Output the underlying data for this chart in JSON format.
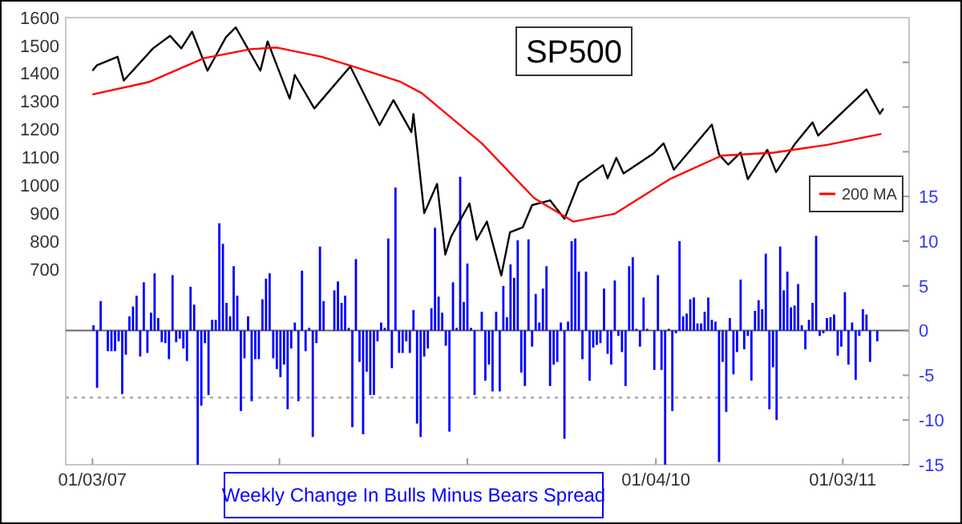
{
  "chart_data": {
    "type": "line",
    "title": "SP500",
    "xlim": [
      "2006-11-12",
      "2011-05-12"
    ],
    "xticks": [
      {
        "value": "2007-01-03",
        "label": "01/03/07"
      },
      {
        "value": "2008-01-02",
        "label": null
      },
      {
        "value": "2009-01-02",
        "label": null
      },
      {
        "value": "2010-01-04",
        "label": "01/04/10"
      },
      {
        "value": "2011-01-03",
        "label": "01/03/11"
      }
    ],
    "ylim": [
      0,
      1600
    ],
    "yticks": [
      700,
      800,
      900,
      1000,
      1100,
      1200,
      1300,
      1400,
      1500,
      1600
    ],
    "y2lim": [
      -15,
      35
    ],
    "y2ticks": [
      -15,
      -10,
      -5,
      0,
      5,
      10,
      15,
      {
        "value": 20,
        "label": null
      },
      {
        "value": 25,
        "label": null
      },
      {
        "value": 30,
        "label": null
      }
    ],
    "legend": "right",
    "ref_lines": [
      {
        "axis": "y2",
        "value": -7.5,
        "color": "#aaaaaa",
        "line_style": "dotted"
      }
    ],
    "series": [
      {
        "color": "#000000",
        "x": [
          "2007-01-03",
          "2007-01-12",
          "2007-02-21",
          "2007-03-05",
          "2007-05-01",
          "2007-06-03",
          "2007-06-25",
          "2007-07-16",
          "2007-08-15",
          "2007-09-20",
          "2007-10-09",
          "2007-11-26",
          "2007-12-10",
          "2008-01-22",
          "2008-02-01",
          "2008-03-10",
          "2008-05-19",
          "2008-07-15",
          "2008-08-11",
          "2008-09-15",
          "2008-09-19",
          "2008-10-10",
          "2008-11-04",
          "2008-11-20",
          "2008-12-01",
          "2009-01-06",
          "2009-01-20",
          "2009-02-09",
          "2009-03-09",
          "2009-03-26",
          "2009-04-20",
          "2009-05-08",
          "2009-06-12",
          "2009-07-10",
          "2009-08-07",
          "2009-09-23",
          "2009-10-02",
          "2009-10-19",
          "2009-11-02",
          "2009-12-31",
          "2010-01-19",
          "2010-02-08",
          "2010-04-23",
          "2010-05-07",
          "2010-05-25",
          "2010-06-18",
          "2010-07-02",
          "2010-08-09",
          "2010-08-26",
          "2010-10-01",
          "2010-11-05",
          "2010-11-16",
          "2010-12-31",
          "2011-02-18",
          "2011-03-16",
          "2011-03-23"
        ],
        "values": [
          1410,
          1430,
          1460,
          1375,
          1490,
          1535,
          1490,
          1550,
          1410,
          1530,
          1565,
          1410,
          1515,
          1310,
          1395,
          1275,
          1425,
          1215,
          1305,
          1190,
          1255,
          900,
          1005,
          752,
          815,
          935,
          805,
          870,
          677,
          832,
          850,
          929,
          946,
          880,
          1010,
          1072,
          1025,
          1098,
          1042,
          1115,
          1150,
          1056,
          1217,
          1110,
          1074,
          1117,
          1022,
          1127,
          1047,
          1146,
          1225,
          1178,
          1258,
          1343,
          1256,
          1275
        ]
      },
      {
        "name": "200 MA",
        "color": "#ff0000",
        "x": [
          "2007-01-03",
          "2007-04-24",
          "2007-08-08",
          "2007-11-07",
          "2007-12-28",
          "2008-03-24",
          "2008-05-23",
          "2008-08-25",
          "2008-10-05",
          "2009-01-30",
          "2009-05-12",
          "2009-07-27",
          "2009-10-16",
          "2010-01-30",
          "2010-05-12",
          "2010-08-22",
          "2010-12-05",
          "2011-03-19"
        ],
        "values": [
          1325,
          1370,
          1455,
          1487,
          1493,
          1460,
          1426,
          1370,
          1330,
          1150,
          954,
          870,
          898,
          1021,
          1106,
          1117,
          1145,
          1184
        ]
      },
      {
        "type": "bar",
        "axis": "y2",
        "name": "Weekly Change In Bulls Minus Bears Spread",
        "color": "#0000ff",
        "x": [
          "2007-01-05",
          "2007-01-12",
          "2007-01-19",
          "2007-02-02",
          "2007-02-09",
          "2007-02-16",
          "2007-02-23",
          "2007-03-02",
          "2007-03-09",
          "2007-03-16",
          "2007-03-23",
          "2007-03-30",
          "2007-04-06",
          "2007-04-13",
          "2007-04-20",
          "2007-04-27",
          "2007-05-04",
          "2007-05-11",
          "2007-05-18",
          "2007-05-25",
          "2007-06-01",
          "2007-06-08",
          "2007-06-15",
          "2007-06-22",
          "2007-06-29",
          "2007-07-06",
          "2007-07-13",
          "2007-07-20",
          "2007-07-27",
          "2007-08-03",
          "2007-08-10",
          "2007-08-17",
          "2007-08-24",
          "2007-08-31",
          "2007-09-07",
          "2007-09-14",
          "2007-09-21",
          "2007-09-28",
          "2007-10-05",
          "2007-10-12",
          "2007-10-19",
          "2007-10-26",
          "2007-11-02",
          "2007-11-09",
          "2007-11-16",
          "2007-11-23",
          "2007-11-30",
          "2007-12-07",
          "2007-12-14",
          "2007-12-21",
          "2007-12-28",
          "2008-01-04",
          "2008-01-11",
          "2008-01-18",
          "2008-01-25",
          "2008-02-01",
          "2008-02-08",
          "2008-02-15",
          "2008-02-22",
          "2008-02-29",
          "2008-03-07",
          "2008-03-14",
          "2008-03-21",
          "2008-03-28",
          "2008-04-18",
          "2008-04-25",
          "2008-05-02",
          "2008-05-09",
          "2008-05-16",
          "2008-05-23",
          "2008-05-30",
          "2008-06-06",
          "2008-06-13",
          "2008-06-20",
          "2008-06-27",
          "2008-07-04",
          "2008-07-11",
          "2008-07-18",
          "2008-07-25",
          "2008-08-01",
          "2008-08-08",
          "2008-08-15",
          "2008-08-22",
          "2008-08-29",
          "2008-09-05",
          "2008-09-12",
          "2008-09-19",
          "2008-09-26",
          "2008-10-03",
          "2008-10-10",
          "2008-10-17",
          "2008-10-24",
          "2008-10-31",
          "2008-11-07",
          "2008-11-14",
          "2008-11-21",
          "2008-11-28",
          "2008-12-05",
          "2008-12-12",
          "2008-12-19",
          "2008-12-26",
          "2009-01-02",
          "2009-01-09",
          "2009-01-16",
          "2009-01-30",
          "2009-02-06",
          "2009-02-13",
          "2009-02-20",
          "2009-02-27",
          "2009-03-06",
          "2009-03-13",
          "2009-03-20",
          "2009-03-27",
          "2009-04-03",
          "2009-04-10",
          "2009-04-17",
          "2009-04-24",
          "2009-05-01",
          "2009-05-08",
          "2009-05-15",
          "2009-05-22",
          "2009-05-29",
          "2009-06-05",
          "2009-06-12",
          "2009-06-19",
          "2009-06-26",
          "2009-07-03",
          "2009-07-10",
          "2009-07-17",
          "2009-07-24",
          "2009-07-31",
          "2009-08-07",
          "2009-08-14",
          "2009-08-21",
          "2009-08-28",
          "2009-09-04",
          "2009-09-11",
          "2009-09-18",
          "2009-09-25",
          "2009-10-02",
          "2009-10-09",
          "2009-10-16",
          "2009-10-23",
          "2009-10-30",
          "2009-11-06",
          "2009-11-13",
          "2009-11-20",
          "2009-11-27",
          "2009-12-04",
          "2009-12-11",
          "2009-12-18",
          "2010-01-01",
          "2010-01-08",
          "2010-01-15",
          "2010-01-22",
          "2010-01-29",
          "2010-02-05",
          "2010-02-12",
          "2010-02-19",
          "2010-02-26",
          "2010-03-05",
          "2010-03-12",
          "2010-03-19",
          "2010-03-26",
          "2010-04-02",
          "2010-04-09",
          "2010-04-16",
          "2010-04-23",
          "2010-04-30",
          "2010-05-07",
          "2010-05-14",
          "2010-05-21",
          "2010-05-28",
          "2010-06-04",
          "2010-06-11",
          "2010-06-18",
          "2010-06-25",
          "2010-07-02",
          "2010-07-09",
          "2010-07-16",
          "2010-07-23",
          "2010-07-30",
          "2010-08-06",
          "2010-08-13",
          "2010-08-20",
          "2010-08-27",
          "2010-09-03",
          "2010-09-10",
          "2010-09-17",
          "2010-09-24",
          "2010-10-01",
          "2010-10-08",
          "2010-10-15",
          "2010-10-22",
          "2010-10-29",
          "2010-11-05",
          "2010-11-12",
          "2010-11-19",
          "2010-11-26",
          "2010-12-03",
          "2010-12-10",
          "2010-12-17",
          "2010-12-24",
          "2010-12-31",
          "2011-01-07",
          "2011-01-14",
          "2011-01-21",
          "2011-01-28",
          "2011-02-04",
          "2011-02-11",
          "2011-02-18",
          "2011-02-25",
          "2011-03-11"
        ],
        "values": [
          0.6,
          -6.4,
          3.3,
          -2.3,
          -2.3,
          -2.3,
          -1.2,
          -7.1,
          -2.7,
          1.6,
          2.7,
          3.9,
          -2.9,
          5.4,
          -2.5,
          2.0,
          6.4,
          1.4,
          -1.3,
          -1.4,
          -3.2,
          6.2,
          -1.3,
          -0.9,
          -2.0,
          -3.4,
          4.9,
          2.9,
          -15,
          -8.4,
          -1.4,
          -7.2,
          1.2,
          1.2,
          12.0,
          9.7,
          3.1,
          1.6,
          7.2,
          3.9,
          -9.0,
          -3.1,
          1.6,
          -7.9,
          -3.2,
          -3.2,
          3.5,
          5.8,
          6.4,
          -3.1,
          -4.3,
          -5.2,
          -3.8,
          -8.8,
          -2.0,
          0.9,
          -7.9,
          6.7,
          -2.3,
          0.3,
          -11.9,
          -1.4,
          9.4,
          3.3,
          4.5,
          5.5,
          3.1,
          3.9,
          0.3,
          -10.8,
          8.0,
          -3.5,
          -11.6,
          -4.6,
          -7.2,
          -7.2,
          -1.2,
          0.9,
          0.3,
          10.3,
          -4.2,
          16.0,
          -2.5,
          -2.5,
          -1.2,
          -2.5,
          2.3,
          -10.4,
          -11.9,
          -2.9,
          -2.0,
          2.5,
          11.5,
          3.8,
          2.0,
          -1.7,
          -11.3,
          5.4,
          0.3,
          17.2,
          3.2,
          7.5,
          0.3,
          -7.2,
          2.1,
          -5.6,
          -3.8,
          -6.8,
          2.1,
          -6.8,
          5.0,
          1.5,
          7.4,
          5.9,
          10.1,
          -4.7,
          -6.2,
          10.2,
          -1.8,
          4.1,
          0.9,
          4.7,
          7.2,
          -6.2,
          -3.8,
          -3.5,
          0.9,
          -12.1,
          1.0,
          10.0,
          10.3,
          6.6,
          -3.2,
          6.6,
          -5.6,
          -1.9,
          -1.6,
          -1.4,
          4.7,
          -2.6,
          -3.8,
          5.6,
          -0.6,
          -2.4,
          -6.2,
          7.2,
          8.2,
          0.2,
          -1.8,
          3.7,
          0.2,
          -4.4,
          6.2,
          -4.4,
          -15,
          0.2,
          -9.0,
          -0.3,
          10.0,
          1.6,
          1.9,
          3.5,
          3.7,
          0.8,
          0.8,
          2.1,
          3.7,
          1.2,
          1.0,
          -14.7,
          -3.5,
          -9.1,
          1.4,
          -4.9,
          -2.4,
          5.7,
          -2.1,
          -0.6,
          -5.6,
          2.2,
          3.4,
          2.4,
          8.6,
          -8.8,
          -4.1,
          -10.0,
          9.4,
          4.5,
          6.6,
          2.6,
          2.8,
          5.2,
          0.6,
          -2.1,
          1.2,
          3.1,
          10.6,
          -0.6,
          -0.3,
          1.4,
          1.5,
          1.8,
          -2.8,
          -1.8,
          4.3,
          -3.8,
          0.9,
          -5.5,
          -0.6,
          2.4,
          1.8,
          -3.5,
          -1.2
        ]
      }
    ]
  }
}
